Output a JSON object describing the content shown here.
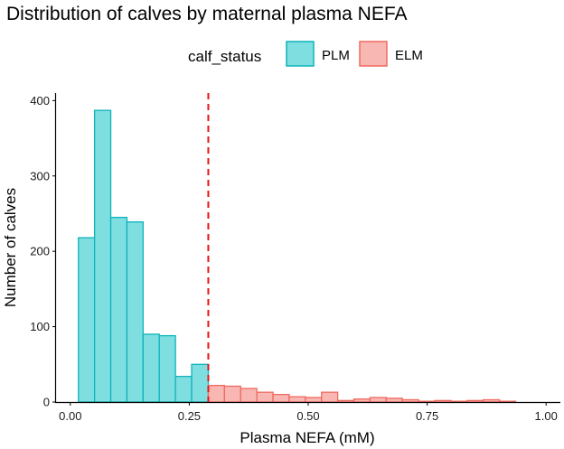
{
  "chart_data": {
    "type": "histogram",
    "title": "Distribution of calves by maternal plasma NEFA",
    "xlabel": "Plasma NEFA (mM)",
    "ylabel": "Number of calves",
    "xlim": [
      -0.03,
      1.03
    ],
    "ylim": [
      0,
      410
    ],
    "x_ticks": [
      0.0,
      0.25,
      0.5,
      0.75,
      1.0
    ],
    "x_tick_labels": [
      "0.00",
      "0.25",
      "0.50",
      "0.75",
      "1.00"
    ],
    "y_ticks": [
      0,
      100,
      200,
      300,
      400
    ],
    "y_tick_labels": [
      "0",
      "100",
      "200",
      "300",
      "400"
    ],
    "threshold": 0.29,
    "legend": {
      "title": "calf_status",
      "position": "top",
      "entries": [
        {
          "label": "PLM",
          "fill": "#7fdfe0",
          "stroke": "#0fb3bb"
        },
        {
          "label": "ELM",
          "fill": "#f9b7b3",
          "stroke": "#ef6a60"
        }
      ]
    },
    "threshold_color": "#ee1111",
    "series": [
      {
        "name": "PLM",
        "bins": [
          {
            "x0": 0.017,
            "x1": 0.051,
            "count": 218
          },
          {
            "x0": 0.051,
            "x1": 0.085,
            "count": 387
          },
          {
            "x0": 0.085,
            "x1": 0.119,
            "count": 245
          },
          {
            "x0": 0.119,
            "x1": 0.153,
            "count": 239
          },
          {
            "x0": 0.153,
            "x1": 0.187,
            "count": 90
          },
          {
            "x0": 0.187,
            "x1": 0.221,
            "count": 88
          },
          {
            "x0": 0.221,
            "x1": 0.255,
            "count": 34
          },
          {
            "x0": 0.255,
            "x1": 0.29,
            "count": 50
          }
        ]
      },
      {
        "name": "ELM",
        "bins": [
          {
            "x0": 0.29,
            "x1": 0.324,
            "count": 22
          },
          {
            "x0": 0.324,
            "x1": 0.358,
            "count": 21
          },
          {
            "x0": 0.358,
            "x1": 0.392,
            "count": 18
          },
          {
            "x0": 0.392,
            "x1": 0.426,
            "count": 13
          },
          {
            "x0": 0.426,
            "x1": 0.46,
            "count": 10
          },
          {
            "x0": 0.46,
            "x1": 0.494,
            "count": 7
          },
          {
            "x0": 0.494,
            "x1": 0.528,
            "count": 6
          },
          {
            "x0": 0.528,
            "x1": 0.562,
            "count": 13
          },
          {
            "x0": 0.562,
            "x1": 0.596,
            "count": 2
          },
          {
            "x0": 0.596,
            "x1": 0.63,
            "count": 4
          },
          {
            "x0": 0.63,
            "x1": 0.664,
            "count": 6
          },
          {
            "x0": 0.664,
            "x1": 0.698,
            "count": 5
          },
          {
            "x0": 0.698,
            "x1": 0.732,
            "count": 3
          },
          {
            "x0": 0.732,
            "x1": 0.766,
            "count": 1
          },
          {
            "x0": 0.766,
            "x1": 0.8,
            "count": 2
          },
          {
            "x0": 0.8,
            "x1": 0.834,
            "count": 1
          },
          {
            "x0": 0.834,
            "x1": 0.868,
            "count": 2
          },
          {
            "x0": 0.868,
            "x1": 0.902,
            "count": 3
          },
          {
            "x0": 0.902,
            "x1": 0.936,
            "count": 1
          },
          {
            "x0": 0.936,
            "x1": 0.97,
            "count": 0
          }
        ]
      }
    ]
  }
}
